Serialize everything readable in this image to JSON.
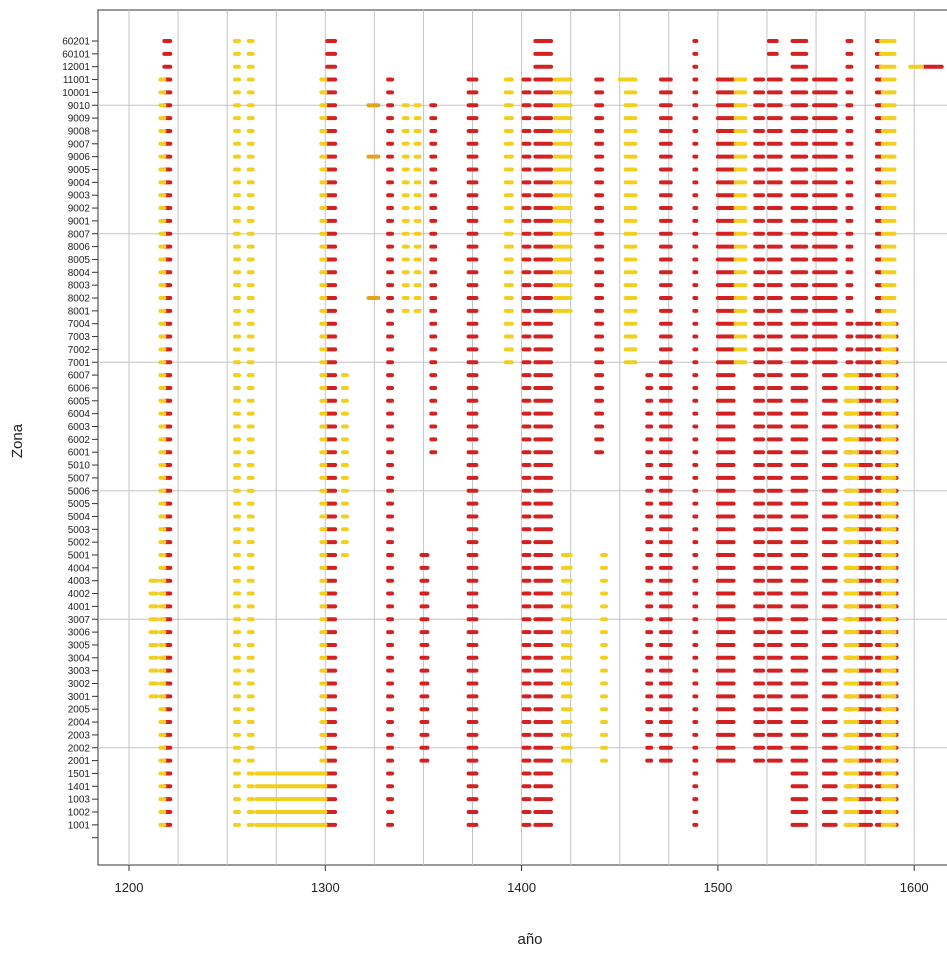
{
  "chart_data": {
    "type": "scatter",
    "title": "",
    "xlabel": "año",
    "ylabel": "Zona",
    "x_ticks": [
      1200,
      1300,
      1400,
      1500,
      1600
    ],
    "xlim": [
      1185,
      1615
    ],
    "vgrid": [
      1200,
      1225,
      1250,
      1275,
      1300,
      1325,
      1350,
      1375,
      1400,
      1425,
      1450,
      1475,
      1500,
      1525,
      1550,
      1575,
      1600
    ],
    "hgrid_zones": [
      "9010",
      "8007",
      "7001",
      "5006",
      "3007",
      "2002"
    ],
    "grid": true,
    "zones": [
      "60201",
      "60101",
      "12001",
      "11001",
      "10001",
      "9010",
      "9009",
      "9008",
      "9007",
      "9006",
      "9005",
      "9004",
      "9003",
      "9002",
      "9001",
      "8007",
      "8006",
      "8005",
      "8004",
      "8003",
      "8002",
      "8001",
      "7004",
      "7003",
      "7002",
      "7001",
      "6007",
      "6006",
      "6005",
      "6004",
      "6003",
      "6002",
      "6001",
      "5010",
      "5007",
      "5006",
      "5005",
      "5004",
      "5003",
      "5002",
      "5001",
      "4004",
      "4003",
      "4002",
      "4001",
      "3007",
      "3006",
      "3005",
      "3004",
      "3003",
      "3002",
      "3001",
      "2005",
      "2004",
      "2003",
      "2002",
      "2001",
      "1501",
      "1401",
      "1003",
      "1002",
      "1001"
    ],
    "colors": {
      "red": "#d42020",
      "yellow": "#f2cf1d",
      "orange": "#e8a21a"
    },
    "series": [
      {
        "color": "red",
        "segments": [
          {
            "zones": "60201..1001",
            "x": [
              1218,
              1221
            ]
          },
          {
            "zones": "60201..1001",
            "x": [
              1301,
              1305
            ]
          },
          {
            "zones": "60201..1001",
            "x": [
              1407,
              1415
            ]
          },
          {
            "zones": "60201..1001",
            "x": [
              1538,
              1545
            ]
          },
          {
            "zones": "60201..1001",
            "x": [
              1566,
              1568
            ]
          },
          {
            "zones": "60201..1001",
            "x": [
              1581,
              1583
            ]
          },
          {
            "zones": "60201..1001",
            "x": [
              1488,
              1489
            ]
          },
          {
            "zones": "60201..60101",
            "x": [
              1526,
              1530
            ]
          },
          {
            "zones": "11001..1001",
            "x": [
              1332,
              1334
            ]
          },
          {
            "zones": "11001..1001",
            "x": [
              1373,
              1377
            ]
          },
          {
            "zones": "11001..1001",
            "x": [
              1401,
              1404
            ]
          },
          {
            "zones": "11001..2001",
            "x": [
              1471,
              1476
            ]
          },
          {
            "zones": "11001..2001",
            "x": [
              1500,
              1508
            ]
          },
          {
            "zones": "11001..2001",
            "x": [
              1519,
              1523
            ]
          },
          {
            "zones": "11001..2001",
            "x": [
              1526,
              1532
            ]
          },
          {
            "zones": "11001..7001",
            "x": [
              1549,
              1560
            ]
          },
          {
            "zones": "11001..6001",
            "x": [
              1438,
              1441
            ]
          },
          {
            "zones": "9010..6001",
            "x": [
              1354,
              1356
            ]
          },
          {
            "zones": "7004..1001",
            "x": [
              1571,
              1578
            ]
          },
          {
            "zones": "7004..1001",
            "x": [
              1589,
              1591
            ]
          },
          {
            "zones": "6007..1001",
            "x": [
              1554,
              1560
            ]
          },
          {
            "zones": "6007..2001",
            "x": [
              1464,
              1466
            ]
          },
          {
            "zones": "5001..2001",
            "x": [
              1349,
              1352
            ]
          },
          {
            "zones": "12001",
            "x": [
              1605,
              1614
            ]
          }
        ]
      },
      {
        "color": "yellow",
        "segments": [
          {
            "zones": "60201..12001",
            "x": [
              1583,
              1590
            ]
          },
          {
            "zones": "11001..1001",
            "x": [
              1216,
              1218
            ]
          },
          {
            "zones": "60201..1001",
            "x": [
              1254,
              1256
            ]
          },
          {
            "zones": "60201..1001",
            "x": [
              1261,
              1263
            ]
          },
          {
            "zones": "11001..1001",
            "x": [
              1298,
              1300
            ]
          },
          {
            "zones": "11001..7001",
            "x": [
              1392,
              1395
            ]
          },
          {
            "zones": "11001..8001",
            "x": [
              1417,
              1425
            ]
          },
          {
            "zones": "11001..7001",
            "x": [
              1453,
              1458
            ]
          },
          {
            "zones": "11001..7001",
            "x": [
              1509,
              1514
            ]
          },
          {
            "zones": "11001..1001",
            "x": [
              1584,
              1590
            ]
          },
          {
            "zones": "9010..8001",
            "x": [
              1340,
              1342
            ]
          },
          {
            "zones": "9010..8001",
            "x": [
              1346,
              1348
            ]
          },
          {
            "zones": "6007..5001",
            "x": [
              1309,
              1311
            ]
          },
          {
            "zones": "6007..1001",
            "x": [
              1565,
              1571
            ]
          },
          {
            "zones": "5001..2001",
            "x": [
              1421,
              1425
            ]
          },
          {
            "zones": "5001..2001",
            "x": [
              1441,
              1443
            ]
          },
          {
            "zones": "4003..3001",
            "x": [
              1211,
              1214
            ]
          },
          {
            "zones": "1501..1001",
            "x": [
              1265,
              1300
            ]
          },
          {
            "zones": "11001",
            "x": [
              1450,
              1457
            ]
          },
          {
            "zones": "12001",
            "x": [
              1598,
              1604
            ]
          }
        ]
      },
      {
        "color": "orange",
        "segments": [
          {
            "zones": "9010",
            "x": [
              1322,
              1327
            ]
          },
          {
            "zones": "9006",
            "x": [
              1322,
              1327
            ]
          },
          {
            "zones": "8002",
            "x": [
              1322,
              1327
            ]
          }
        ]
      }
    ]
  }
}
